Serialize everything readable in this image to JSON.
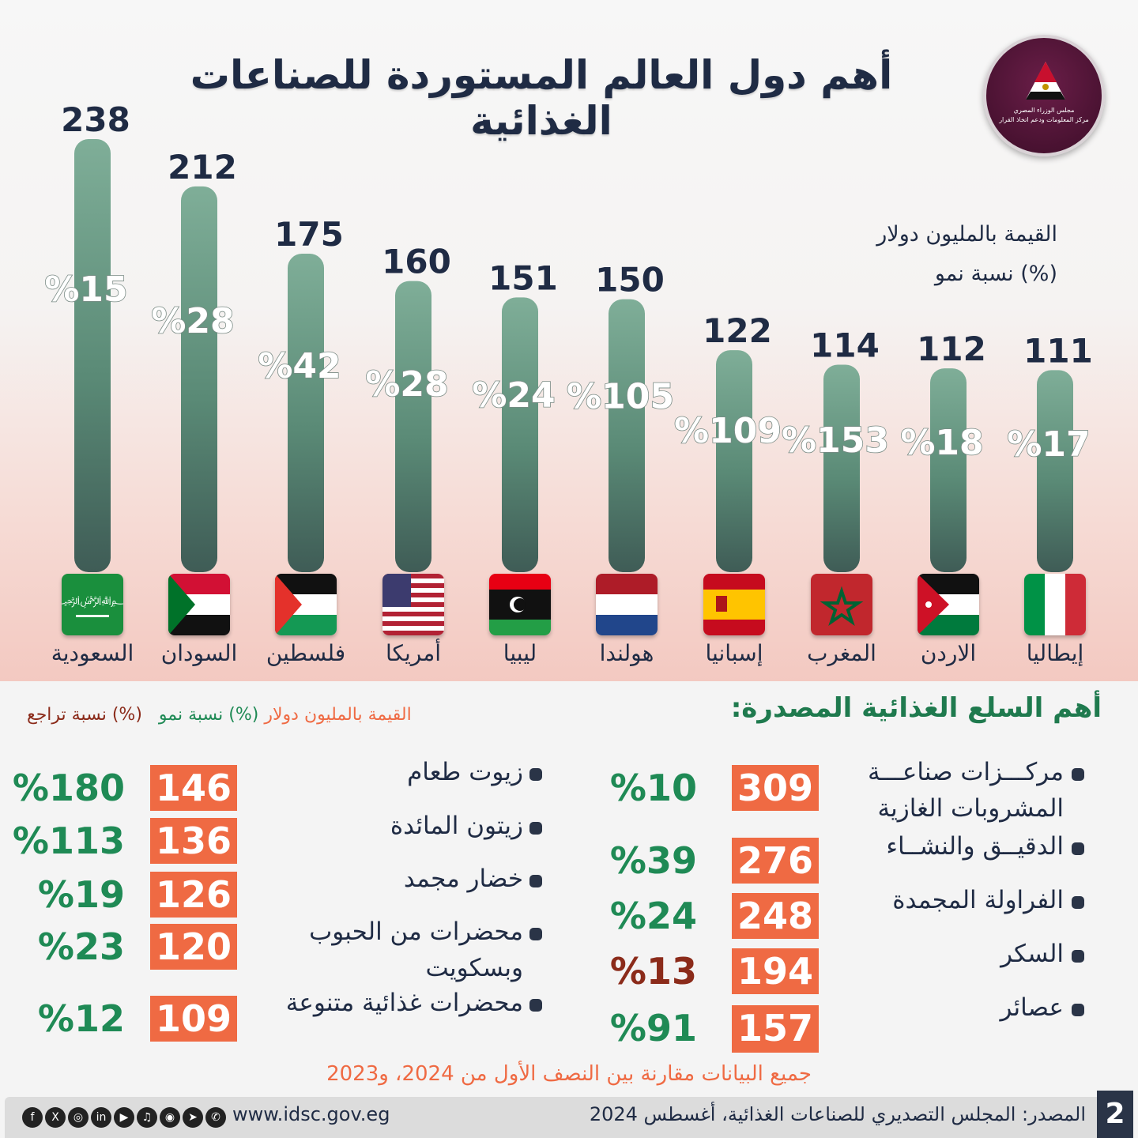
{
  "title": "أهم دول العالم المستوردة للصناعات الغذائية",
  "logo": {
    "line1": "مجلس الوزراء المصري",
    "line2": "مركز المعلومات ودعم اتخاذ القرار"
  },
  "legend_top": {
    "value_label": "القيمة بالمليون دولار",
    "growth_label": "(%) نسبة نمو"
  },
  "colors": {
    "bar": "#5f9a80",
    "value_box": "#ef6a43",
    "growth": "#1f8a55",
    "decline": "#8b2b1a",
    "title": "#1f2b44"
  },
  "chart_data": {
    "type": "bar",
    "categories": [
      "السعودية",
      "السودان",
      "فلسطين",
      "أمريكا",
      "ليبيا",
      "هولندا",
      "إسبانيا",
      "المغرب",
      "الاردن",
      "إيطاليا"
    ],
    "values": [
      238,
      212,
      175,
      160,
      151,
      150,
      122,
      114,
      112,
      111
    ],
    "growth": [
      "%15",
      "%28",
      "%42",
      "%28",
      "%24",
      "%105",
      "%109",
      "%153",
      "%18",
      "%17"
    ],
    "value_labels": [
      "238",
      "212",
      "175",
      "160",
      "151",
      "150",
      "122",
      "114",
      "112",
      "111"
    ],
    "ylim": [
      0,
      238
    ]
  },
  "section2": {
    "title": "أهم السلع الغذائية المصدرة:",
    "legend": {
      "value": "القيمة بالمليون دولار",
      "growth": "(%) نسبة نمو",
      "decline": "(%) نسبة تراجع"
    },
    "right_items": [
      {
        "label": "مركـــزات صناعـــة المشروبات الغازية",
        "value": "309",
        "growth": "%10",
        "decline": false
      },
      {
        "label": "الدقيــق والنشــاء",
        "value": "276",
        "growth": "%39",
        "decline": false
      },
      {
        "label": "الفراولة المجمدة",
        "value": "248",
        "growth": "%24",
        "decline": false
      },
      {
        "label": "السكر",
        "value": "194",
        "growth": "%13",
        "decline": true
      },
      {
        "label": "عصائر",
        "value": "157",
        "growth": "%91",
        "decline": false
      }
    ],
    "left_items": [
      {
        "label": "زيوت طعام",
        "value": "146",
        "growth": "%180",
        "decline": false
      },
      {
        "label": "زيتون المائدة",
        "value": "136",
        "growth": "%113",
        "decline": false
      },
      {
        "label": "خضار مجمد",
        "value": "126",
        "growth": "%19",
        "decline": false
      },
      {
        "label": "محضرات من الحبوب وبسكويت",
        "value": "120",
        "growth": "%23",
        "decline": false
      },
      {
        "label": "محضرات غذائية متنوعة",
        "value": "109",
        "growth": "%12",
        "decline": false
      }
    ]
  },
  "note": "جميع البيانات مقارنة بين النصف الأول من 2024، و2023",
  "footer": {
    "source": "المصدر: المجلس التصديري للصناعات الغذائية، أغسطس 2024",
    "website": "www.idsc.gov.eg",
    "page": "2",
    "social": [
      "f",
      "X",
      "◎",
      "in",
      "▶",
      "♫",
      "◉",
      "➤",
      "✆"
    ]
  }
}
